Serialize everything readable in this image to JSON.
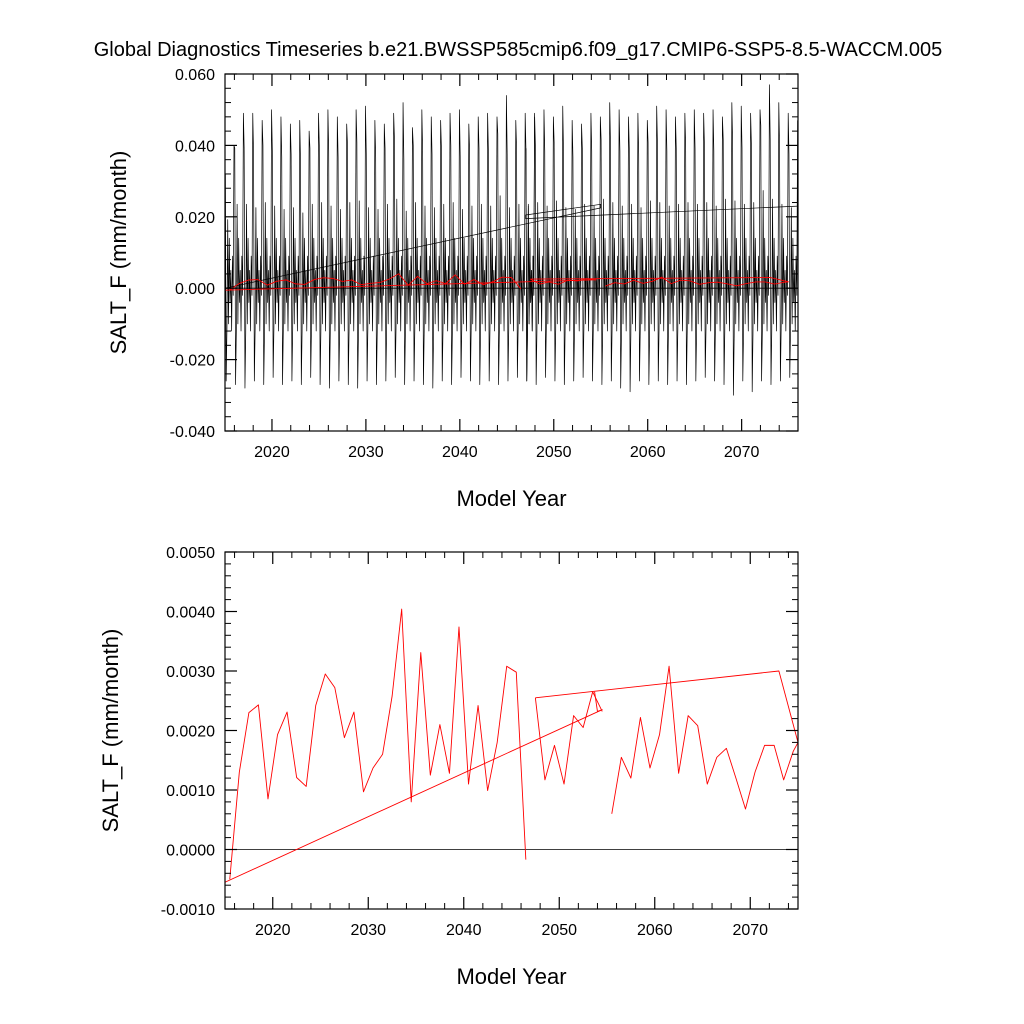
{
  "title": "Global Diagnostics Timeseries b.e21.BWSSP585cmip6.f09_g17.CMIP6-SSP5-8.5-WACCM.005",
  "colors": {
    "black_series": "#000000",
    "red_series": "#ff0000",
    "axis": "#000000"
  },
  "chart_data": [
    {
      "type": "line",
      "xlabel": "Model Year",
      "ylabel": "SALT_F (mm/month)",
      "xlim": [
        2015,
        2076
      ],
      "ylim": [
        -0.04,
        0.06
      ],
      "xticks": [
        2020,
        2030,
        2040,
        2050,
        2060,
        2070
      ],
      "xtick_labels": [
        "2020",
        "2030",
        "2040",
        "2050",
        "2060",
        "2070"
      ],
      "yticks": [
        -0.04,
        -0.02,
        0.0,
        0.02,
        0.04,
        0.06
      ],
      "ytick_labels": [
        "-0.040",
        "-0.020",
        "0.000",
        "0.020",
        "0.040",
        "0.060"
      ],
      "zero_line": true,
      "series": [
        {
          "name": "monthly",
          "color": "#000000",
          "segments": [
            {
              "start_year": 2015.04,
              "step": 0.0833,
              "annual_peaks": [
                0.04,
                0.049,
                0.049,
                0.047,
                0.05,
                0.048,
                0.046,
                0.047,
                0.044,
                0.049,
                0.05,
                0.048,
                0.046,
                0.05,
                0.051,
                0.047,
                0.046,
                0.049,
                0.052,
                0.045,
                0.05,
                0.048,
                0.047,
                0.049,
                0.05,
                0.046,
                0.048,
                0.049,
                0.048,
                0.054,
                0.047,
                0.049,
                0.048
              ],
              "annual_troughs": [
                -0.026,
                -0.027,
                -0.028,
                -0.026,
                -0.027,
                -0.025,
                -0.027,
                -0.026,
                -0.027,
                -0.025,
                -0.027,
                -0.028,
                -0.026,
                -0.027,
                -0.028,
                -0.026,
                -0.027,
                -0.026,
                -0.025,
                -0.027,
                -0.026,
                -0.027,
                -0.028,
                -0.026,
                -0.027,
                -0.025,
                -0.026,
                -0.027,
                -0.026,
                -0.027,
                -0.026,
                -0.025,
                -0.026
              ]
            },
            {
              "start_year": 2047.04,
              "step": 0.0833,
              "annual_peaks": [
                0.049,
                0.05,
                0.048,
                0.051,
                0.047,
                0.046,
                0.049,
                0.048,
                0.052,
                0.05,
                0.048,
                0.049,
                0.047,
                0.051,
                0.05,
                0.048,
                0.049,
                0.05,
                0.049,
                0.05,
                0.048,
                0.052,
                0.051,
                0.049,
                0.05,
                0.057,
                0.052,
                0.049,
                0.047
              ],
              "annual_troughs": [
                -0.026,
                -0.027,
                -0.025,
                -0.026,
                -0.027,
                -0.026,
                -0.025,
                -0.026,
                -0.027,
                -0.026,
                -0.028,
                -0.029,
                -0.026,
                -0.027,
                -0.026,
                -0.027,
                -0.026,
                -0.027,
                -0.026,
                -0.025,
                -0.026,
                -0.027,
                -0.03,
                -0.026,
                -0.029,
                -0.026,
                -0.027,
                -0.026,
                -0.025
              ]
            }
          ]
        },
        {
          "name": "cumulative",
          "color": "#000000",
          "polylines": [
            {
              "x": [
                2015.0,
                2055.0,
                2055.0,
                2047.0,
                2047.0,
                2076.0
              ],
              "y": [
                0.0,
                0.0225,
                0.0235,
                0.0205,
                0.0195,
                0.023
              ]
            }
          ]
        },
        {
          "name": "annual",
          "color": "#ff0000",
          "x": [
            2015.5,
            2016.5,
            2017.5,
            2018.5,
            2019.5,
            2020.5,
            2021.5,
            2022.5,
            2023.5,
            2024.5,
            2025.5,
            2026.5,
            2027.5,
            2028.5,
            2029.5,
            2030.5,
            2031.5,
            2032.5,
            2033.5,
            2034.5,
            2035.5,
            2036.5,
            2037.5,
            2038.5,
            2039.5,
            2040.5,
            2041.5,
            2042.5,
            2043.5,
            2044.5,
            2045.5,
            2046.5
          ],
          "y": [
            -0.0005,
            0.0013,
            0.0023,
            0.00243,
            0.00085,
            0.00193,
            0.00231,
            0.00121,
            0.00106,
            0.00242,
            0.00295,
            0.00272,
            0.00188,
            0.00231,
            0.00097,
            0.00137,
            0.0016,
            0.00258,
            0.00404,
            0.0008,
            0.00331,
            0.00125,
            0.0021,
            0.00128,
            0.00374,
            0.0011,
            0.00242,
            0.00099,
            0.0018,
            0.00308,
            0.00298,
            -0.00017
          ]
        },
        {
          "name": "annual_late",
          "color": "#ff0000",
          "x": [
            2047.5,
            2048.5,
            2049.5,
            2050.5,
            2051.5,
            2052.5,
            2053.5,
            2054.5
          ],
          "y": [
            0.00255,
            0.00117,
            0.00175,
            0.0011,
            0.00225,
            0.00205,
            0.00265,
            0.00232
          ]
        },
        {
          "name": "annual_tail",
          "color": "#ff0000",
          "x": [
            2055.5,
            2056.5,
            2057.5,
            2058.5,
            2059.5,
            2060.5,
            2061.5,
            2062.5,
            2063.5,
            2064.5,
            2065.5,
            2066.5,
            2067.5,
            2068.5,
            2069.5,
            2070.5,
            2071.5,
            2072.5,
            2073.5,
            2074.5,
            2075.0
          ],
          "y": [
            0.0006,
            0.00155,
            0.0012,
            0.00222,
            0.00137,
            0.00193,
            0.00308,
            0.00128,
            0.00225,
            0.00208,
            0.0011,
            0.00155,
            0.0017,
            0.0012,
            0.00068,
            0.0013,
            0.00175,
            0.00175,
            0.00117,
            0.00165,
            0.0018
          ]
        },
        {
          "name": "annual_trend",
          "color": "#ff0000",
          "polylines": [
            {
              "x": [
                2015.0,
                2054.5,
                2054.0,
                2053.7
              ],
              "y": [
                -0.00055,
                0.00235,
                0.00232,
                0.00265
              ]
            },
            {
              "x": [
                2047.5,
                2073.0,
                2075.0
              ],
              "y": [
                0.00255,
                0.003,
                0.0018
              ]
            }
          ]
        }
      ]
    },
    {
      "type": "line",
      "xlabel": "Model Year",
      "ylabel": "SALT_F (mm/month)",
      "xlim": [
        2015,
        2075
      ],
      "ylim": [
        -0.001,
        0.005
      ],
      "xticks": [
        2020,
        2030,
        2040,
        2050,
        2060,
        2070
      ],
      "xtick_labels": [
        "2020",
        "2030",
        "2040",
        "2050",
        "2060",
        "2070"
      ],
      "yticks": [
        -0.001,
        0.0,
        0.001,
        0.002,
        0.003,
        0.004,
        0.005
      ],
      "ytick_labels": [
        "-0.0010",
        "0.0000",
        "0.0010",
        "0.0020",
        "0.0030",
        "0.0040",
        "0.0050"
      ],
      "zero_line": true,
      "series": [
        {
          "name": "annual",
          "color": "#ff0000",
          "x": [
            2015.5,
            2016.5,
            2017.5,
            2018.5,
            2019.5,
            2020.5,
            2021.5,
            2022.5,
            2023.5,
            2024.5,
            2025.5,
            2026.5,
            2027.5,
            2028.5,
            2029.5,
            2030.5,
            2031.5,
            2032.5,
            2033.5,
            2034.5,
            2035.5,
            2036.5,
            2037.5,
            2038.5,
            2039.5,
            2040.5,
            2041.5,
            2042.5,
            2043.5,
            2044.5,
            2045.5,
            2046.5
          ],
          "y": [
            -0.0005,
            0.0013,
            0.0023,
            0.00243,
            0.00085,
            0.00193,
            0.00231,
            0.00121,
            0.00106,
            0.00242,
            0.00295,
            0.00272,
            0.00188,
            0.00231,
            0.00097,
            0.00137,
            0.0016,
            0.00258,
            0.00404,
            0.0008,
            0.00331,
            0.00125,
            0.0021,
            0.00128,
            0.00374,
            0.0011,
            0.00242,
            0.00099,
            0.0018,
            0.00308,
            0.00298,
            -0.00017
          ]
        },
        {
          "name": "annual_late",
          "color": "#ff0000",
          "x": [
            2047.5,
            2048.5,
            2049.5,
            2050.5,
            2051.5,
            2052.5,
            2053.5,
            2054.5
          ],
          "y": [
            0.00255,
            0.00117,
            0.00175,
            0.0011,
            0.00225,
            0.00205,
            0.00265,
            0.00232
          ]
        },
        {
          "name": "annual_tail",
          "color": "#ff0000",
          "x": [
            2055.5,
            2056.5,
            2057.5,
            2058.5,
            2059.5,
            2060.5,
            2061.5,
            2062.5,
            2063.5,
            2064.5,
            2065.5,
            2066.5,
            2067.5,
            2068.5,
            2069.5,
            2070.5,
            2071.5,
            2072.5,
            2073.5,
            2074.5,
            2075.0
          ],
          "y": [
            0.0006,
            0.00155,
            0.0012,
            0.00222,
            0.00137,
            0.00193,
            0.00308,
            0.00128,
            0.00225,
            0.00208,
            0.0011,
            0.00155,
            0.0017,
            0.0012,
            0.00068,
            0.0013,
            0.00175,
            0.00175,
            0.00117,
            0.00165,
            0.0018
          ]
        },
        {
          "name": "annual_trend",
          "color": "#ff0000",
          "polylines": [
            {
              "x": [
                2015.0,
                2054.5,
                2054.0,
                2053.7
              ],
              "y": [
                -0.00055,
                0.00235,
                0.00232,
                0.00265
              ]
            },
            {
              "x": [
                2047.5,
                2073.0,
                2075.0
              ],
              "y": [
                0.00255,
                0.003,
                0.0018
              ]
            }
          ]
        }
      ]
    }
  ]
}
